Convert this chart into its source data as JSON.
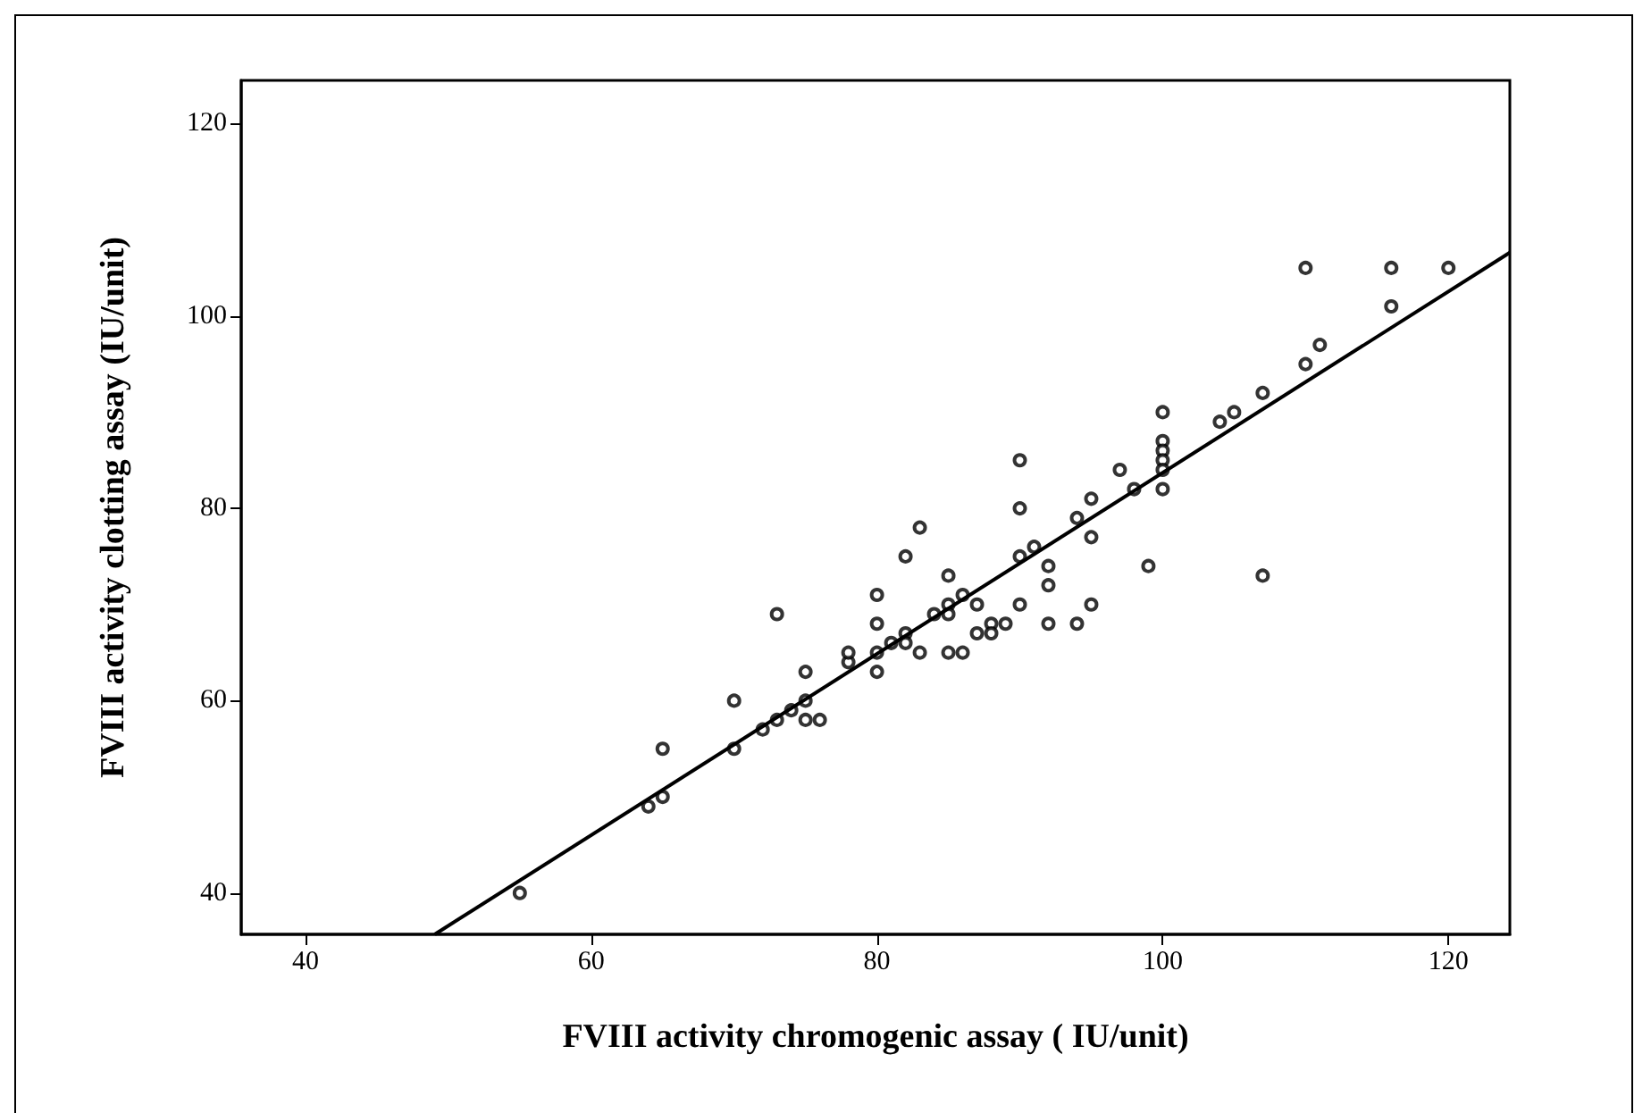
{
  "chart_data": {
    "type": "scatter",
    "xlabel": "FVIII activity chromogenic assay ( IU/unit)",
    "ylabel": "FVIII activity clotting assay (IU/unit)",
    "xlim": [
      35.5,
      124.3
    ],
    "ylim": [
      35.7,
      124.5
    ],
    "xticks": [
      40,
      60,
      80,
      100,
      120
    ],
    "yticks": [
      40,
      60,
      80,
      100,
      120
    ],
    "grid": false,
    "marker": "circle",
    "series": [
      {
        "color": "#000000",
        "x": [
          55,
          64,
          65,
          65,
          70,
          70,
          72,
          73,
          73,
          74,
          75,
          75,
          75,
          76,
          78,
          78,
          80,
          80,
          80,
          80,
          81,
          82,
          82,
          82,
          83,
          83,
          84,
          85,
          85,
          85,
          85,
          86,
          86,
          87,
          87,
          88,
          88,
          89,
          90,
          90,
          90,
          90,
          91,
          92,
          92,
          92,
          94,
          94,
          95,
          95,
          95,
          97,
          98,
          99,
          100,
          100,
          100,
          100,
          100,
          100,
          104,
          105,
          107,
          107,
          110,
          110,
          111,
          116,
          116,
          120
        ],
        "values": [
          40,
          49,
          50,
          55,
          60,
          55,
          57,
          58,
          69,
          59,
          60,
          63,
          58,
          58,
          64,
          65,
          65,
          63,
          68,
          71,
          66,
          67,
          66,
          75,
          78,
          65,
          69,
          70,
          69,
          73,
          65,
          71,
          65,
          70,
          67,
          68,
          67,
          68,
          75,
          80,
          85,
          70,
          76,
          74,
          72,
          68,
          79,
          68,
          81,
          77,
          70,
          84,
          82,
          74,
          90,
          87,
          86,
          85,
          84,
          82,
          89,
          90,
          92,
          73,
          95,
          105,
          97,
          105,
          101,
          105
        ]
      },
      {
        "type": "line",
        "color": "#000000",
        "marker": "none",
        "line_style": "solid",
        "x": [
          49.05,
          124.3
        ],
        "values": [
          35.7,
          106.6
        ]
      }
    ]
  }
}
